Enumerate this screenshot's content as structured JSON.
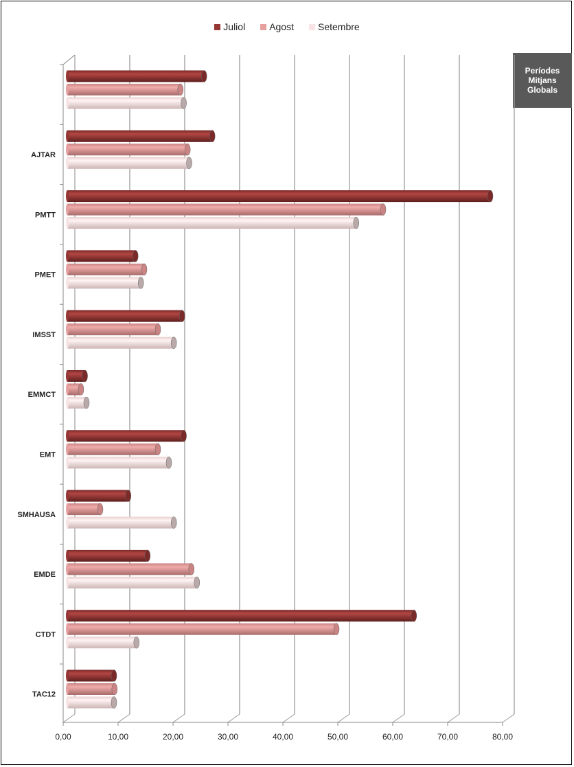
{
  "chart_data": {
    "type": "bar",
    "orientation": "horizontal",
    "style": "3d-cylinder",
    "categories": [
      "",
      "AJTAR",
      "PMTT",
      "PMET",
      "IMSST",
      "EMMCT",
      "EMT",
      "SMHAUSA",
      "EMDE",
      "CTDT",
      "TAC12"
    ],
    "series": [
      {
        "name": "Juliol",
        "color": "#953735",
        "values": [
          24.9,
          26.4,
          77.0,
          12.4,
          20.9,
          3.2,
          21.2,
          11.1,
          14.6,
          63.1,
          8.5
        ]
      },
      {
        "name": "Agost",
        "color": "#e6a0a0",
        "values": [
          20.6,
          21.9,
          57.5,
          14.0,
          16.5,
          2.5,
          16.5,
          6.0,
          22.6,
          49.0,
          8.6
        ]
      },
      {
        "name": "Setembre",
        "color": "#f8e4e4",
        "values": [
          21.2,
          22.2,
          52.6,
          13.4,
          19.4,
          3.5,
          18.5,
          19.4,
          23.6,
          12.6,
          8.5
        ]
      }
    ],
    "xlim": [
      0,
      80
    ],
    "xticks": [
      "0,00",
      "10,00",
      "20,00",
      "30,00",
      "40,00",
      "50,00",
      "60,00",
      "70,00",
      "80,00"
    ],
    "grid": true,
    "legend_position": "top",
    "title": "",
    "xlabel": "",
    "ylabel": ""
  },
  "annotation": "Períodes Mitjans Globals"
}
